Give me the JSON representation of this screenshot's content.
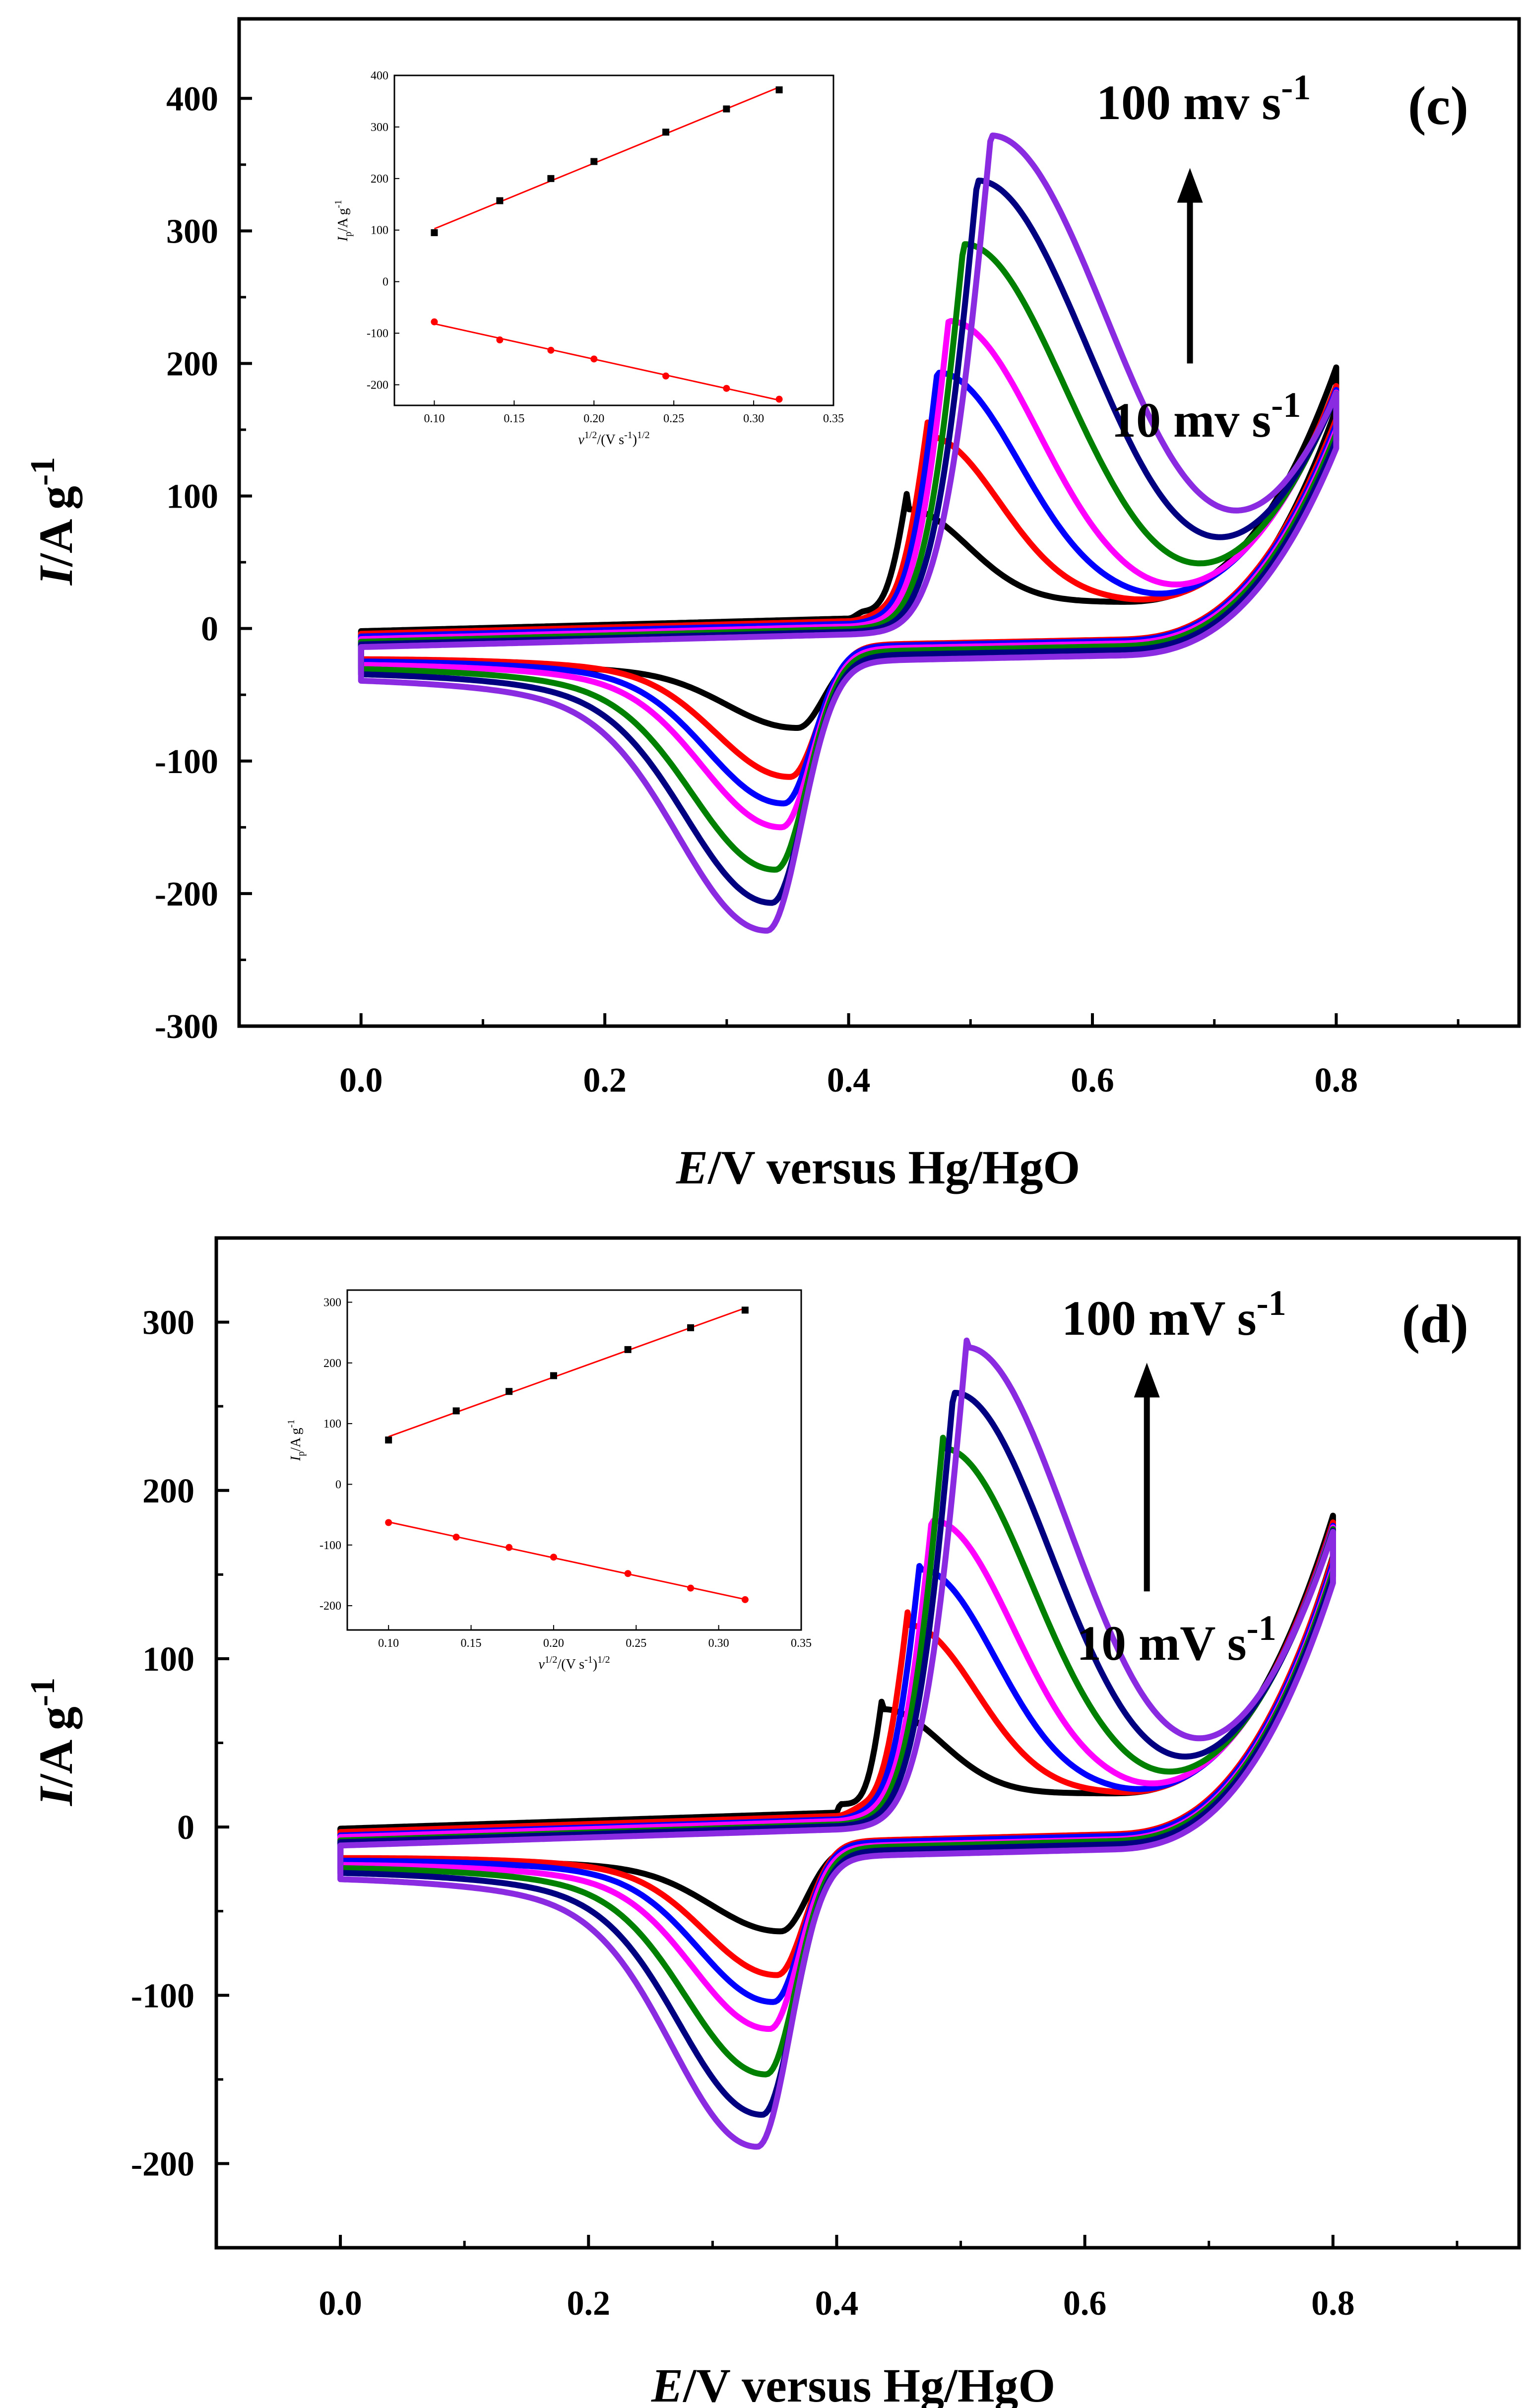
{
  "figure": {
    "colors": {
      "v10": "#000000",
      "v20": "#ff0000",
      "v30": "#0000ff",
      "v40": "#ff00ff",
      "v60": "#008000",
      "v80": "#000080",
      "v100": "#8a2be2",
      "inset_line": "#ff0000",
      "inset_anodic_marker": "#000000",
      "inset_cathodic_marker": "#ff0000"
    },
    "series_order": [
      "v10",
      "v20",
      "v30",
      "v40",
      "v60",
      "v80",
      "v100"
    ]
  },
  "chart_data": [
    {
      "type": "line",
      "panel_label": "(c)",
      "xlabel_italic": "E",
      "xlabel_rest": "/V versus Hg/HgO",
      "ylabel_italic": "I",
      "ylabel_rest": "/A g",
      "ylabel_sup": "-1",
      "xlim": [
        -0.1,
        0.95
      ],
      "ylim": [
        -300,
        460
      ],
      "x_ticks": [
        0.0,
        0.2,
        0.4,
        0.6,
        0.8
      ],
      "x_tick_labels": [
        "0.0",
        "0.2",
        "0.4",
        "0.6",
        "0.8"
      ],
      "y_ticks": [
        -300,
        -200,
        -100,
        0,
        100,
        200,
        300,
        400
      ],
      "y_tick_labels": [
        "-300",
        "-200",
        "-100",
        "0",
        "100",
        "200",
        "300",
        "400"
      ],
      "annotation_top": {
        "text": "100 mv s",
        "sup": "-1"
      },
      "annotation_bottom": {
        "text": "10 mv s",
        "sup": "-1"
      },
      "arrow": {
        "from_y": 200,
        "to_y": 340,
        "x": 0.68
      },
      "series": [
        {
          "key": "v10",
          "anodic_peak_E": 0.448,
          "anodic_peak_I": 90,
          "cathodic_peak_E": 0.358,
          "cathodic_peak_I": -75,
          "upper_E": 0.8,
          "upper_I": 202,
          "start_I_forward": -2,
          "start_I_reverse": -22
        },
        {
          "key": "v20",
          "anodic_peak_E": 0.465,
          "anodic_peak_I": 145,
          "cathodic_peak_E": 0.352,
          "cathodic_peak_I": -112,
          "upper_E": 0.8,
          "upper_I": 188,
          "start_I_forward": -4,
          "start_I_reverse": -16
        },
        {
          "key": "v30",
          "anodic_peak_E": 0.474,
          "anodic_peak_I": 193,
          "cathodic_peak_E": 0.347,
          "cathodic_peak_I": -132,
          "upper_E": 0.8,
          "upper_I": 185,
          "start_I_forward": -6,
          "start_I_reverse": -17
        },
        {
          "key": "v40",
          "anodic_peak_E": 0.483,
          "anodic_peak_I": 232,
          "cathodic_peak_E": 0.345,
          "cathodic_peak_I": -150,
          "upper_E": 0.8,
          "upper_I": 183,
          "start_I_forward": -8,
          "start_I_reverse": -19
        },
        {
          "key": "v60",
          "anodic_peak_E": 0.495,
          "anodic_peak_I": 290,
          "cathodic_peak_E": 0.34,
          "cathodic_peak_I": -182,
          "upper_E": 0.8,
          "upper_I": 182,
          "start_I_forward": -10,
          "start_I_reverse": -21
        },
        {
          "key": "v80",
          "anodic_peak_E": 0.506,
          "anodic_peak_I": 338,
          "cathodic_peak_E": 0.337,
          "cathodic_peak_I": -207,
          "upper_E": 0.8,
          "upper_I": 180,
          "start_I_forward": -12,
          "start_I_reverse": -24
        },
        {
          "key": "v100",
          "anodic_peak_E": 0.517,
          "anodic_peak_I": 372,
          "cathodic_peak_E": 0.333,
          "cathodic_peak_I": -228,
          "upper_E": 0.8,
          "upper_I": 178,
          "start_I_forward": -14,
          "start_I_reverse": -28
        }
      ],
      "inset": {
        "type": "scatter",
        "xlabel_italic": "v",
        "xlabel_sup": "1/2",
        "xlabel_rest": "/(V s",
        "xlabel_sup2": "-1",
        "xlabel_tail": ")",
        "xlabel_sup3": "1/2",
        "ylabel_italic": "I",
        "ylabel_sub": "p",
        "ylabel_rest": "/A g",
        "ylabel_sup": "-1",
        "xlim": [
          0.075,
          0.35
        ],
        "ylim": [
          -240,
          400
        ],
        "x_ticks": [
          0.1,
          0.15,
          0.2,
          0.25,
          0.3,
          0.35
        ],
        "x_tick_labels": [
          "0.10",
          "0.15",
          "0.20",
          "0.25",
          "0.30",
          "0.35"
        ],
        "y_ticks": [
          -200,
          -100,
          0,
          100,
          200,
          300,
          400
        ],
        "y_tick_labels": [
          "-200",
          "-100",
          "0",
          "100",
          "200",
          "300",
          "400"
        ],
        "x": [
          0.1,
          0.141,
          0.173,
          0.2,
          0.245,
          0.283,
          0.316
        ],
        "anodic": [
          95,
          157,
          200,
          233,
          290,
          335,
          372
        ],
        "cathodic": [
          -78,
          -113,
          -133,
          -150,
          -183,
          -207,
          -228
        ]
      }
    },
    {
      "type": "line",
      "panel_label": "(d)",
      "xlabel_italic": "E",
      "xlabel_rest": "/V versus Hg/HgO",
      "ylabel_italic": "I",
      "ylabel_rest": "/A g",
      "ylabel_sup": "-1",
      "xlim": [
        -0.1,
        0.95
      ],
      "ylim": [
        -250,
        350
      ],
      "x_ticks": [
        0.0,
        0.2,
        0.4,
        0.6,
        0.8
      ],
      "x_tick_labels": [
        "0.0",
        "0.2",
        "0.4",
        "0.6",
        "0.8"
      ],
      "y_ticks": [
        -200,
        -100,
        0,
        100,
        200,
        300
      ],
      "y_tick_labels": [
        "-200",
        "-100",
        "0",
        "100",
        "200",
        "300"
      ],
      "annotation_top": {
        "text": "100 mV s",
        "sup": "-1"
      },
      "annotation_bottom": {
        "text": "10 mV s",
        "sup": "-1"
      },
      "arrow": {
        "from_y": 140,
        "to_y": 270,
        "x": 0.65
      },
      "series": [
        {
          "key": "v10",
          "anodic_peak_E": 0.438,
          "anodic_peak_I": 70,
          "cathodic_peak_E": 0.355,
          "cathodic_peak_I": -62,
          "upper_E": 0.8,
          "upper_I": 190,
          "start_I_forward": -1,
          "start_I_reverse": -15
        },
        {
          "key": "v20",
          "anodic_peak_E": 0.458,
          "anodic_peak_I": 120,
          "cathodic_peak_E": 0.352,
          "cathodic_peak_I": -88,
          "upper_E": 0.8,
          "upper_I": 186,
          "start_I_forward": -3,
          "start_I_reverse": -12
        },
        {
          "key": "v30",
          "anodic_peak_E": 0.468,
          "anodic_peak_I": 153,
          "cathodic_peak_E": 0.349,
          "cathodic_peak_I": -104,
          "upper_E": 0.8,
          "upper_I": 184,
          "start_I_forward": -5,
          "start_I_reverse": -13
        },
        {
          "key": "v40",
          "anodic_peak_E": 0.478,
          "anodic_peak_I": 182,
          "cathodic_peak_E": 0.346,
          "cathodic_peak_I": -120,
          "upper_E": 0.8,
          "upper_I": 183,
          "start_I_forward": -6,
          "start_I_reverse": -15
        },
        {
          "key": "v60",
          "anodic_peak_E": 0.486,
          "anodic_peak_I": 225,
          "cathodic_peak_E": 0.343,
          "cathodic_peak_I": -147,
          "upper_E": 0.8,
          "upper_I": 182,
          "start_I_forward": -8,
          "start_I_reverse": -16
        },
        {
          "key": "v80",
          "anodic_peak_E": 0.495,
          "anodic_peak_I": 258,
          "cathodic_peak_E": 0.34,
          "cathodic_peak_I": -171,
          "upper_E": 0.8,
          "upper_I": 181,
          "start_I_forward": -9,
          "start_I_reverse": -18
        },
        {
          "key": "v100",
          "anodic_peak_E": 0.505,
          "anodic_peak_I": 285,
          "cathodic_peak_E": 0.336,
          "cathodic_peak_I": -190,
          "upper_E": 0.8,
          "upper_I": 180,
          "start_I_forward": -11,
          "start_I_reverse": -21
        }
      ],
      "inset": {
        "type": "scatter",
        "xlabel_italic": "v",
        "xlabel_sup": "1/2",
        "xlabel_rest": "/(V s",
        "xlabel_sup2": "-1",
        "xlabel_tail": ")",
        "xlabel_sup3": "1/2",
        "ylabel_italic": "I",
        "ylabel_sub": "p",
        "ylabel_rest": "/A g",
        "ylabel_sup": "-1",
        "xlim": [
          0.075,
          0.35
        ],
        "ylim": [
          -240,
          320
        ],
        "x_ticks": [
          0.1,
          0.15,
          0.2,
          0.25,
          0.3,
          0.35
        ],
        "x_tick_labels": [
          "0.10",
          "0.15",
          "0.20",
          "0.25",
          "0.30",
          "0.35"
        ],
        "y_ticks": [
          -200,
          -100,
          0,
          100,
          200,
          300
        ],
        "y_tick_labels": [
          "-200",
          "-100",
          "0",
          "100",
          "200",
          "300"
        ],
        "x": [
          0.1,
          0.141,
          0.173,
          0.2,
          0.245,
          0.283,
          0.316
        ],
        "anodic": [
          73,
          121,
          153,
          179,
          222,
          258,
          287
        ],
        "cathodic": [
          -63,
          -87,
          -104,
          -120,
          -147,
          -171,
          -190
        ]
      }
    }
  ]
}
